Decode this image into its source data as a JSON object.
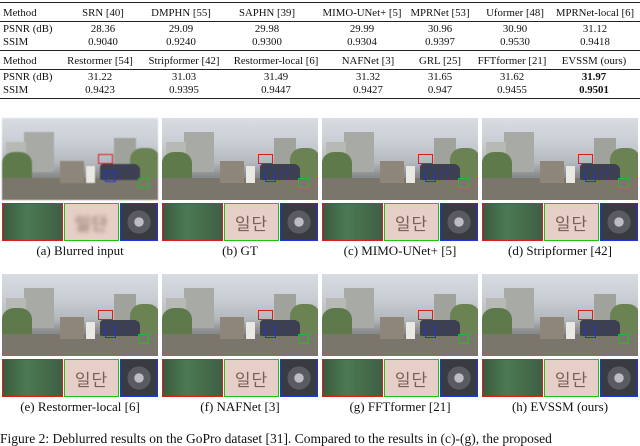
{
  "table": {
    "header1": [
      "Method",
      "SRN [40]",
      "DMPHN [55]",
      "SAPHN [39]",
      "MIMO-UNet+ [5]",
      "MPRNet [53]",
      "Uformer [48]",
      "MPRNet-local [6]"
    ],
    "row_psnr1": [
      "PSNR (dB)",
      "28.36",
      "29.09",
      "29.98",
      "29.99",
      "30.96",
      "30.90",
      "31.12"
    ],
    "row_ssim1": [
      "SSIM",
      "0.9040",
      "0.9240",
      "0.9300",
      "0.9304",
      "0.9397",
      "0.9530",
      "0.9418"
    ],
    "header2": [
      "Method",
      "Restormer [54]",
      "Stripformer [42]",
      "Restormer-local [6]",
      "NAFNet [3]",
      "GRL [25]",
      "FFTformer [21]",
      "EVSSM (ours)"
    ],
    "row_psnr2": [
      "PSNR (dB)",
      "31.22",
      "31.03",
      "31.49",
      "31.32",
      "31.65",
      "31.62",
      "31.97"
    ],
    "row_ssim2": [
      "SSIM",
      "0.9423",
      "0.9395",
      "0.9447",
      "0.9427",
      "0.947",
      "0.9455",
      "0.9501"
    ]
  },
  "figure": {
    "panels": [
      {
        "caption": "(a) Blurred input",
        "hangul": "일단"
      },
      {
        "caption": "(b) GT",
        "hangul": "일단"
      },
      {
        "caption": "(c) MIMO-UNet+ [5]",
        "hangul": "일단"
      },
      {
        "caption": "(d) Stripformer [42]",
        "hangul": "일단"
      },
      {
        "caption": "(e) Restormer-local [6]",
        "hangul": "일단"
      },
      {
        "caption": "(f) NAFNet [3]",
        "hangul": "일단"
      },
      {
        "caption": "(g) FFTformer [21]",
        "hangul": "일단"
      },
      {
        "caption": "(h) EVSSM (ours)",
        "hangul": "일단"
      }
    ],
    "footer_caption": "Figure 2: Deblurred results on the GoPro dataset [31]. Compared to the results in (c)-(g), the proposed"
  },
  "colors": {
    "red_box": "#e01b1b",
    "green_box": "#18c418",
    "blue_box": "#1b36e0",
    "citation": "#2a55c8"
  }
}
